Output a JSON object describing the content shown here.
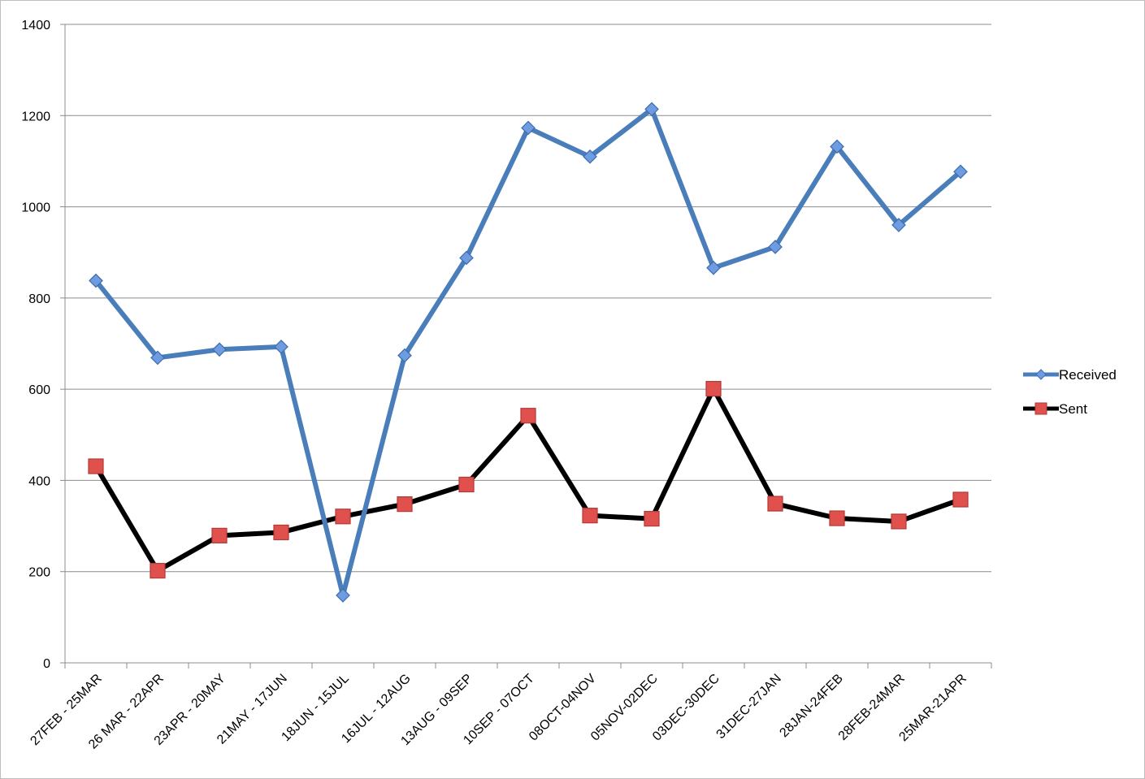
{
  "chart_data": {
    "type": "line",
    "categories": [
      "27FEB - 25MAR",
      "26 MAR - 22APR",
      "23APR - 20MAY",
      "21MAY - 17JUN",
      "18JUN - 15JUL",
      "16JUL - 12AUG",
      "13AUG - 09SEP",
      "10SEP - 07OCT",
      "08OCT-04NOV",
      "05NOV-02DEC",
      "03DEC-30DEC",
      "31DEC-27JAN",
      "28JAN-24FEB",
      "28FEB-24MAR",
      "25MAR-21APR"
    ],
    "series": [
      {
        "name": "Received",
        "color": "#4a7ebb",
        "marker": "diamond",
        "marker_color": "#6f9be0",
        "values": [
          838,
          669,
          687,
          693,
          148,
          674,
          888,
          1173,
          1110,
          1214,
          866,
          912,
          1132,
          960,
          1077
        ]
      },
      {
        "name": "Sent",
        "color": "#000000",
        "marker": "square",
        "marker_color": "#e0504d",
        "values": [
          431,
          202,
          279,
          286,
          321,
          348,
          391,
          542,
          323,
          316,
          601,
          349,
          317,
          310,
          358
        ]
      }
    ],
    "y_ticks": [
      "0",
      "200",
      "400",
      "600",
      "800",
      "1000",
      "1200",
      "1400"
    ],
    "ylim": [
      0,
      1400
    ],
    "grid": true,
    "legend": "right"
  }
}
